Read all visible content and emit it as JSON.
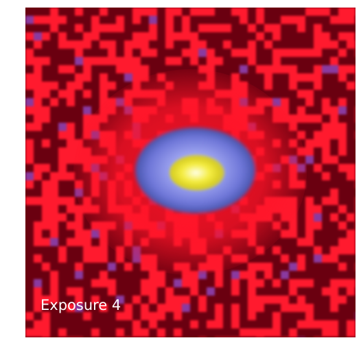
{
  "image": {
    "caption": "Exposure 4",
    "colors": {
      "background": "#6a0010",
      "hot_pixel": "#ff1a2e",
      "halo": "#6e76d8",
      "core": "#f4ec40"
    }
  }
}
